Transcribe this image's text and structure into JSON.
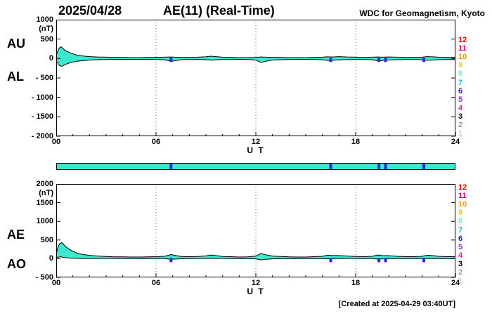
{
  "header": {
    "date": "2025/04/28",
    "title": "AE(11) (Real-Time)",
    "source": "WDC for Geomagnetism, Kyoto"
  },
  "footer": {
    "created": "[Created at 2025-04-29 03:40UT]"
  },
  "axes": {
    "x_tick_labels": [
      "00",
      "06",
      "12",
      "18",
      "24"
    ],
    "x_label": "U T",
    "unit": "(nT)"
  },
  "panels": {
    "top": {
      "upper_label": "AU",
      "lower_label": "AL",
      "y_tick_labels": [
        "1000",
        "500",
        "0",
        "- 500",
        "- 1000",
        "- 1500",
        "- 2000"
      ]
    },
    "bottom": {
      "upper_label": "AE",
      "lower_label": "AO",
      "y_tick_labels": [
        "2000",
        "1500",
        "1000",
        "500",
        "0",
        "- 500"
      ]
    }
  },
  "stations": {
    "numbers": [
      "12",
      "11",
      "10",
      "9",
      "8",
      "7",
      "6",
      "5",
      "4",
      "3",
      "2",
      "1"
    ],
    "colors": [
      "#E60000",
      "#CC0066",
      "#FF9900",
      "#EECC00",
      "#7FE8D0",
      "#00C0C8",
      "#2222EE",
      "#8833CC",
      "#DD22CC",
      "#000000",
      "#999999",
      "#CCCCCC"
    ]
  },
  "availability_bar": {
    "gap_hours": [
      6.9,
      16.5,
      19.4,
      19.8,
      22.1
    ]
  },
  "colors": {
    "area_fill": "#3CE9CE",
    "line": "#000000",
    "gap_mark": "#2B2BD5",
    "grid": "#777777"
  },
  "chart_data": [
    {
      "type": "area",
      "title": "AU / AL",
      "xlabel": "U T",
      "ylabel": "(nT)",
      "xlim": [
        0,
        24
      ],
      "ylim": [
        -2000,
        1000
      ],
      "x_hours": [
        0,
        0.1,
        0.2,
        0.3,
        0.4,
        0.5,
        0.75,
        1,
        1.25,
        1.5,
        2,
        2.5,
        3,
        3.5,
        4,
        4.5,
        5,
        5.5,
        6,
        6.5,
        6.9,
        7.1,
        7.5,
        8,
        8.5,
        9,
        9.3,
        9.6,
        10,
        10.5,
        11,
        11.5,
        12,
        12.3,
        12.6,
        13,
        13.5,
        14,
        14.5,
        15,
        15.5,
        16,
        16.3,
        16.6,
        17,
        17.5,
        18,
        18.5,
        19,
        19.3,
        19.6,
        20,
        20.5,
        21,
        21.5,
        22,
        22.3,
        22.6,
        23,
        23.5,
        24
      ],
      "series": [
        {
          "name": "AU",
          "values": [
            80,
            200,
            280,
            300,
            260,
            220,
            160,
            120,
            90,
            70,
            50,
            40,
            35,
            30,
            30,
            25,
            25,
            30,
            30,
            35,
            40,
            35,
            30,
            30,
            35,
            45,
            60,
            50,
            35,
            30,
            25,
            25,
            30,
            40,
            35,
            30,
            30,
            25,
            25,
            25,
            30,
            35,
            45,
            40,
            50,
            40,
            35,
            30,
            35,
            40,
            35,
            40,
            35,
            30,
            30,
            35,
            50,
            45,
            35,
            30,
            30
          ]
        },
        {
          "name": "AL",
          "values": [
            -60,
            -120,
            -180,
            -200,
            -190,
            -160,
            -120,
            -90,
            -70,
            -60,
            -40,
            -30,
            -25,
            -20,
            -20,
            -20,
            -20,
            -20,
            -25,
            -30,
            -70,
            -60,
            -30,
            -25,
            -25,
            -30,
            -40,
            -35,
            -25,
            -25,
            -20,
            -25,
            -40,
            -100,
            -70,
            -40,
            -30,
            -25,
            -20,
            -20,
            -25,
            -30,
            -50,
            -45,
            -35,
            -30,
            -25,
            -25,
            -30,
            -60,
            -50,
            -40,
            -30,
            -25,
            -25,
            -30,
            -45,
            -40,
            -30,
            -25,
            -25
          ]
        }
      ]
    },
    {
      "type": "area",
      "title": "AE / AO",
      "xlabel": "U T",
      "ylabel": "(nT)",
      "xlim": [
        0,
        24
      ],
      "ylim": [
        -500,
        2000
      ],
      "x_hours": [
        0,
        0.1,
        0.2,
        0.3,
        0.4,
        0.5,
        0.75,
        1,
        1.25,
        1.5,
        2,
        2.5,
        3,
        3.5,
        4,
        4.5,
        5,
        5.5,
        6,
        6.5,
        6.9,
        7.1,
        7.5,
        8,
        8.5,
        9,
        9.3,
        9.6,
        10,
        10.5,
        11,
        11.5,
        12,
        12.3,
        12.6,
        13,
        13.5,
        14,
        14.5,
        15,
        15.5,
        16,
        16.3,
        16.6,
        17,
        17.5,
        18,
        18.5,
        19,
        19.3,
        19.6,
        20,
        20.5,
        21,
        21.5,
        22,
        22.3,
        22.6,
        23,
        23.5,
        24
      ],
      "series": [
        {
          "name": "AE",
          "values": [
            120,
            300,
            400,
            430,
            410,
            350,
            260,
            200,
            150,
            120,
            90,
            70,
            60,
            50,
            50,
            45,
            45,
            50,
            55,
            65,
            110,
            95,
            60,
            55,
            60,
            75,
            100,
            85,
            60,
            55,
            45,
            50,
            70,
            140,
            105,
            70,
            60,
            50,
            45,
            45,
            55,
            65,
            95,
            85,
            85,
            70,
            60,
            55,
            65,
            100,
            85,
            80,
            65,
            55,
            55,
            65,
            95,
            85,
            65,
            55,
            55
          ]
        },
        {
          "name": "AO",
          "values": [
            10,
            40,
            50,
            50,
            35,
            30,
            20,
            15,
            10,
            5,
            5,
            5,
            5,
            5,
            5,
            2,
            2,
            5,
            2,
            2,
            -15,
            -12,
            0,
            2,
            5,
            7,
            10,
            7,
            5,
            2,
            2,
            0,
            -5,
            -30,
            -17,
            -5,
            0,
            0,
            2,
            2,
            2,
            2,
            -2,
            -2,
            7,
            5,
            5,
            2,
            2,
            -10,
            -7,
            0,
            2,
            2,
            2,
            2,
            2,
            2,
            2,
            2,
            2
          ]
        }
      ]
    }
  ]
}
